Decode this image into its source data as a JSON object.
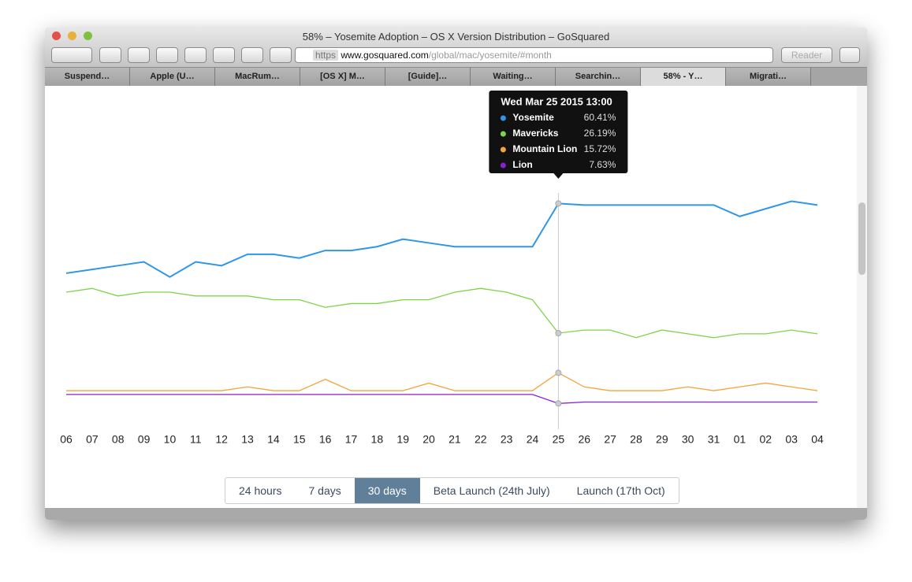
{
  "window": {
    "title": "58% – Yosemite Adoption – OS X Version Distribution – GoSquared",
    "url": {
      "scheme": "https",
      "host": "www.gosquared.com",
      "path": "/global/mac/yosemite/#month"
    },
    "reader": "Reader",
    "tabs": [
      "Suspend…",
      "Apple (U…",
      "MacRum…",
      "[OS X] M…",
      "[Guide]…",
      "Waiting…",
      "Searchin…",
      "58% - Y…",
      "Migrati…"
    ],
    "active_tab": 7
  },
  "chart_data": {
    "type": "line",
    "categories": [
      "06",
      "07",
      "08",
      "09",
      "10",
      "11",
      "12",
      "13",
      "14",
      "15",
      "16",
      "17",
      "18",
      "19",
      "20",
      "21",
      "22",
      "23",
      "24",
      "25",
      "26",
      "27",
      "28",
      "29",
      "30",
      "31",
      "01",
      "02",
      "03",
      "04"
    ],
    "ylim": [
      0,
      90
    ],
    "series": [
      {
        "name": "Yosemite",
        "color": "#2f96e8",
        "values": [
          42,
          43,
          44,
          45,
          41,
          45,
          44,
          47,
          47,
          46,
          48,
          48,
          49,
          51,
          50,
          49,
          49,
          49,
          49,
          60.41,
          60,
          60,
          60,
          60,
          60,
          60,
          57,
          59,
          61,
          60
        ]
      },
      {
        "name": "Mavericks",
        "color": "#7ed348",
        "values": [
          37,
          38,
          36,
          37,
          37,
          36,
          36,
          36,
          35,
          35,
          33,
          34,
          34,
          35,
          35,
          37,
          38,
          37,
          35,
          26.19,
          27,
          27,
          25,
          27,
          26,
          25,
          26,
          26,
          27,
          26
        ]
      },
      {
        "name": "Mountain Lion",
        "color": "#f3a43b",
        "values": [
          11,
          11,
          11,
          11,
          11,
          11,
          11,
          12,
          11,
          11,
          14,
          11,
          11,
          11,
          13,
          11,
          11,
          11,
          11,
          15.72,
          12,
          11,
          11,
          11,
          12,
          11,
          12,
          13,
          12,
          11
        ]
      },
      {
        "name": "Lion",
        "color": "#8a1fd8",
        "values": [
          10,
          10,
          10,
          10,
          10,
          10,
          10,
          10,
          10,
          10,
          10,
          10,
          10,
          10,
          10,
          10,
          10,
          10,
          10,
          7.63,
          8,
          8,
          8,
          8,
          8,
          8,
          8,
          8,
          8,
          8
        ]
      }
    ],
    "tooltip": {
      "title": "Wed Mar 25 2015 13:00",
      "index": 19,
      "values": [
        60.41,
        26.19,
        15.72,
        7.63
      ],
      "value_labels": [
        "60.41%",
        "26.19%",
        "15.72%",
        "7.63%"
      ]
    },
    "ranges": [
      "24 hours",
      "7 days",
      "30 days",
      "Beta Launch (24th July)",
      "Launch (17th Oct)"
    ],
    "active_range": 2
  }
}
